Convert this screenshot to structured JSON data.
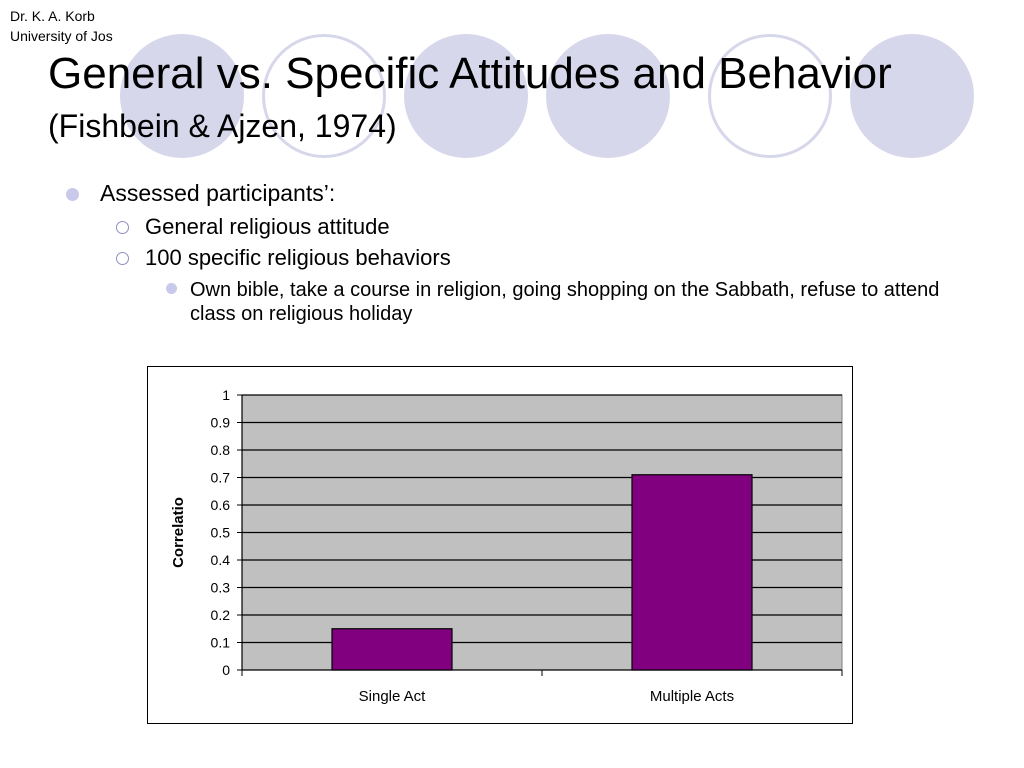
{
  "slide": {
    "author_line1": "Dr. K. A. Korb",
    "author_line2": "University of Jos",
    "title": "General vs. Specific Attitudes and Behavior",
    "subtitle": "(Fishbein & Ajzen, 1974)"
  },
  "bullets": {
    "level1": "Assessed participants’:",
    "level2": [
      "General religious attitude",
      "100 specific religious behaviors"
    ],
    "level3": "Own bible, take a course in religion, going shopping on the Sabbath, refuse to attend class on religious holiday"
  },
  "colors": {
    "accent_circles": "#d7d7ec",
    "bar_fill": "#800080",
    "plot_background": "#c0c0c0"
  },
  "chart_data": {
    "type": "bar",
    "categories": [
      "Single Act",
      "Multiple Acts"
    ],
    "values": [
      0.15,
      0.71
    ],
    "title": "",
    "xlabel": "",
    "ylabel": "Correlatio",
    "ylim": [
      0,
      1
    ],
    "yticks": [
      "0",
      "0.1",
      "0.2",
      "0.3",
      "0.4",
      "0.5",
      "0.6",
      "0.7",
      "0.8",
      "0.9",
      "1"
    ],
    "grid": true,
    "legend": "none"
  }
}
